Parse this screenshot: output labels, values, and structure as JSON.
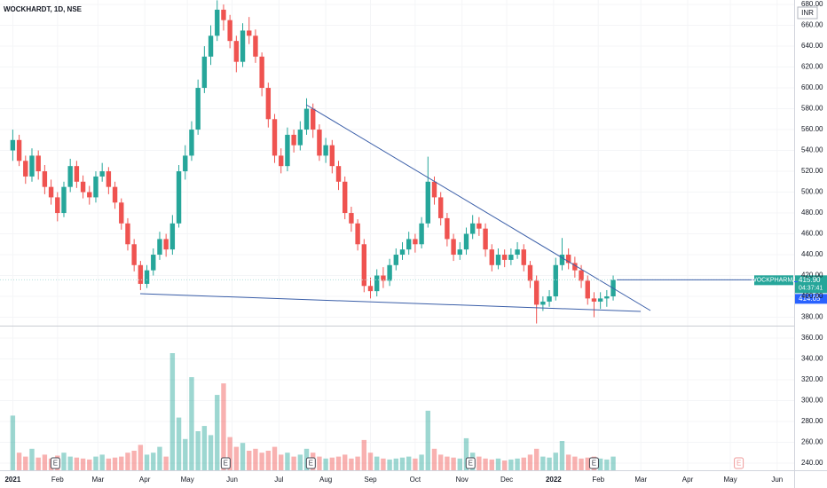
{
  "chart_data": {
    "type": "candlestick",
    "title": "WOCKHARDT, 1D, NSE",
    "currency": "INR",
    "up_color": "#26a69a",
    "down_color": "#ef5350",
    "grid": true,
    "xlim": [
      -6,
      367
    ],
    "xticks": [
      {
        "value": 0,
        "label": "2021"
      },
      {
        "value": 21,
        "label": "Feb"
      },
      {
        "value": 40,
        "label": "Mar"
      },
      {
        "value": 62,
        "label": "Apr"
      },
      {
        "value": 82,
        "label": "May"
      },
      {
        "value": 103,
        "label": "Jun"
      },
      {
        "value": 125,
        "label": "Jul"
      },
      {
        "value": 147,
        "label": "Aug"
      },
      {
        "value": 168,
        "label": "Sep"
      },
      {
        "value": 189,
        "label": "Oct"
      },
      {
        "value": 211,
        "label": "Nov"
      },
      {
        "value": 232,
        "label": "Dec"
      },
      {
        "value": 254,
        "label": "2022"
      },
      {
        "value": 275,
        "label": "Feb"
      },
      {
        "value": 295,
        "label": "Mar"
      },
      {
        "value": 317,
        "label": "Apr"
      },
      {
        "value": 337,
        "label": "May"
      },
      {
        "value": 359,
        "label": "Jun"
      }
    ],
    "ylim": [
      233.2,
      684.3
    ],
    "yticks": [
      {
        "value": 680,
        "label": "680.00"
      },
      {
        "value": 660,
        "label": "660.00"
      },
      {
        "value": 640,
        "label": "640.00"
      },
      {
        "value": 620,
        "label": "620.00"
      },
      {
        "value": 600,
        "label": "600.00"
      },
      {
        "value": 580,
        "label": "580.00"
      },
      {
        "value": 560,
        "label": "560.00"
      },
      {
        "value": 540,
        "label": "540.00"
      },
      {
        "value": 520,
        "label": "520.00"
      },
      {
        "value": 500,
        "label": "500.00"
      },
      {
        "value": 480,
        "label": "480.00"
      },
      {
        "value": 460,
        "label": "460.00"
      },
      {
        "value": 440,
        "label": "440.00"
      },
      {
        "value": 420,
        "label": "420.00"
      },
      {
        "value": 400,
        "label": "400.00"
      },
      {
        "value": 380,
        "label": "380.00"
      },
      {
        "value": 360,
        "label": "360.00"
      },
      {
        "value": 340,
        "label": "340.00"
      },
      {
        "value": 320,
        "label": "320.00"
      },
      {
        "value": 300,
        "label": "300.00"
      },
      {
        "value": 280,
        "label": "280.00"
      },
      {
        "value": 260,
        "label": "260.00"
      },
      {
        "value": 240,
        "label": "240.00"
      }
    ],
    "x": [
      0,
      3,
      6,
      9,
      12,
      15,
      18,
      21,
      24,
      27,
      30,
      33,
      36,
      39,
      42,
      45,
      48,
      51,
      54,
      57,
      60,
      63,
      66,
      69,
      72,
      75,
      78,
      81,
      84,
      87,
      90,
      93,
      96,
      99,
      102,
      105,
      108,
      111,
      114,
      117,
      120,
      123,
      126,
      129,
      132,
      135,
      138,
      141,
      144,
      147,
      150,
      153,
      156,
      159,
      162,
      165,
      168,
      171,
      174,
      177,
      180,
      183,
      186,
      189,
      192,
      195,
      198,
      201,
      204,
      207,
      210,
      213,
      216,
      219,
      222,
      225,
      228,
      231,
      234,
      237,
      240,
      243,
      246,
      249,
      252,
      255,
      258,
      261,
      264,
      267,
      270,
      273,
      276,
      279,
      282
    ],
    "open": [
      540,
      550,
      530,
      515,
      535,
      520,
      505,
      495,
      480,
      505,
      525,
      510,
      500,
      495,
      515,
      520,
      505,
      490,
      470,
      450,
      430,
      412,
      425,
      440,
      455,
      445,
      470,
      520,
      535,
      560,
      600,
      630,
      650,
      675,
      665,
      645,
      625,
      655,
      650,
      630,
      600,
      570,
      535,
      525,
      555,
      545,
      560,
      580,
      560,
      535,
      545,
      525,
      510,
      480,
      470,
      450,
      410,
      405,
      420,
      415,
      430,
      440,
      445,
      455,
      450,
      470,
      510,
      495,
      475,
      455,
      440,
      445,
      460,
      470,
      465,
      445,
      430,
      440,
      435,
      440,
      445,
      430,
      415,
      392,
      395,
      400,
      430,
      440,
      432,
      425,
      415,
      398,
      395,
      398,
      400
    ],
    "high": [
      560,
      555,
      535,
      542,
      540,
      526,
      512,
      500,
      510,
      532,
      530,
      516,
      506,
      520,
      528,
      524,
      510,
      494,
      475,
      455,
      434,
      430,
      446,
      462,
      460,
      478,
      526,
      545,
      568,
      608,
      640,
      660,
      684,
      680,
      670,
      650,
      662,
      668,
      656,
      634,
      605,
      575,
      542,
      562,
      560,
      568,
      590,
      585,
      565,
      552,
      550,
      530,
      515,
      486,
      474,
      455,
      418,
      426,
      428,
      436,
      446,
      452,
      462,
      460,
      476,
      534,
      515,
      500,
      480,
      460,
      452,
      466,
      478,
      476,
      470,
      450,
      446,
      445,
      446,
      452,
      450,
      434,
      420,
      400,
      406,
      437,
      456,
      446,
      438,
      430,
      420,
      404,
      404,
      406,
      420
    ],
    "low": [
      530,
      525,
      508,
      510,
      512,
      498,
      488,
      472,
      476,
      500,
      504,
      494,
      488,
      490,
      510,
      498,
      484,
      464,
      444,
      424,
      406,
      408,
      420,
      435,
      438,
      440,
      466,
      512,
      530,
      555,
      595,
      622,
      645,
      655,
      638,
      615,
      620,
      642,
      624,
      592,
      562,
      528,
      518,
      520,
      538,
      540,
      555,
      552,
      530,
      528,
      518,
      502,
      474,
      462,
      444,
      404,
      398,
      400,
      408,
      410,
      425,
      435,
      440,
      442,
      446,
      466,
      488,
      468,
      448,
      434,
      435,
      440,
      455,
      458,
      438,
      424,
      426,
      428,
      430,
      436,
      424,
      408,
      374,
      386,
      390,
      396,
      425,
      426,
      418,
      408,
      392,
      380,
      388,
      390,
      396
    ],
    "close": [
      550,
      530,
      515,
      535,
      520,
      505,
      495,
      480,
      505,
      525,
      510,
      500,
      495,
      515,
      520,
      505,
      490,
      470,
      450,
      430,
      412,
      425,
      440,
      455,
      445,
      470,
      520,
      535,
      560,
      600,
      630,
      650,
      675,
      665,
      645,
      625,
      655,
      650,
      630,
      600,
      570,
      535,
      525,
      555,
      545,
      560,
      580,
      560,
      535,
      545,
      525,
      510,
      480,
      470,
      450,
      410,
      405,
      420,
      415,
      430,
      440,
      445,
      455,
      450,
      470,
      510,
      495,
      475,
      455,
      440,
      445,
      460,
      470,
      465,
      445,
      430,
      440,
      435,
      440,
      445,
      430,
      415,
      392,
      395,
      400,
      430,
      440,
      432,
      425,
      415,
      398,
      395,
      398,
      400,
      415.9
    ],
    "volume": [
      2800,
      900,
      700,
      1100,
      650,
      800,
      600,
      750,
      900,
      700,
      650,
      600,
      550,
      700,
      800,
      600,
      650,
      700,
      900,
      1000,
      1300,
      800,
      900,
      1200,
      700,
      6000,
      2700,
      1600,
      4770,
      2000,
      2270,
      1800,
      3860,
      4450,
      1700,
      1200,
      1400,
      1000,
      1100,
      900,
      1000,
      1200,
      800,
      900,
      700,
      800,
      1100,
      900,
      700,
      600,
      650,
      700,
      800,
      600,
      700,
      1550,
      900,
      700,
      600,
      550,
      600,
      650,
      700,
      600,
      800,
      3050,
      1100,
      800,
      700,
      650,
      600,
      1640,
      900,
      700,
      600,
      550,
      600,
      500,
      550,
      600,
      650,
      800,
      1100,
      700,
      650,
      900,
      1500,
      800,
      700,
      600,
      650,
      700,
      600,
      550,
      700
    ],
    "events": [
      {
        "x": 20,
        "label": "E"
      },
      {
        "x": 100,
        "label": "E"
      },
      {
        "x": 140,
        "label": "E"
      },
      {
        "x": 215,
        "label": "E"
      },
      {
        "x": 273,
        "label": "E"
      },
      {
        "x": 341,
        "label": "E"
      }
    ],
    "symbol": "WOCKPHARMA",
    "last_price": {
      "value": 415.9,
      "label": "415.90"
    },
    "countdown": "04:37:41",
    "pre_market": {
      "value": 414.05,
      "label": "414.05"
    }
  }
}
